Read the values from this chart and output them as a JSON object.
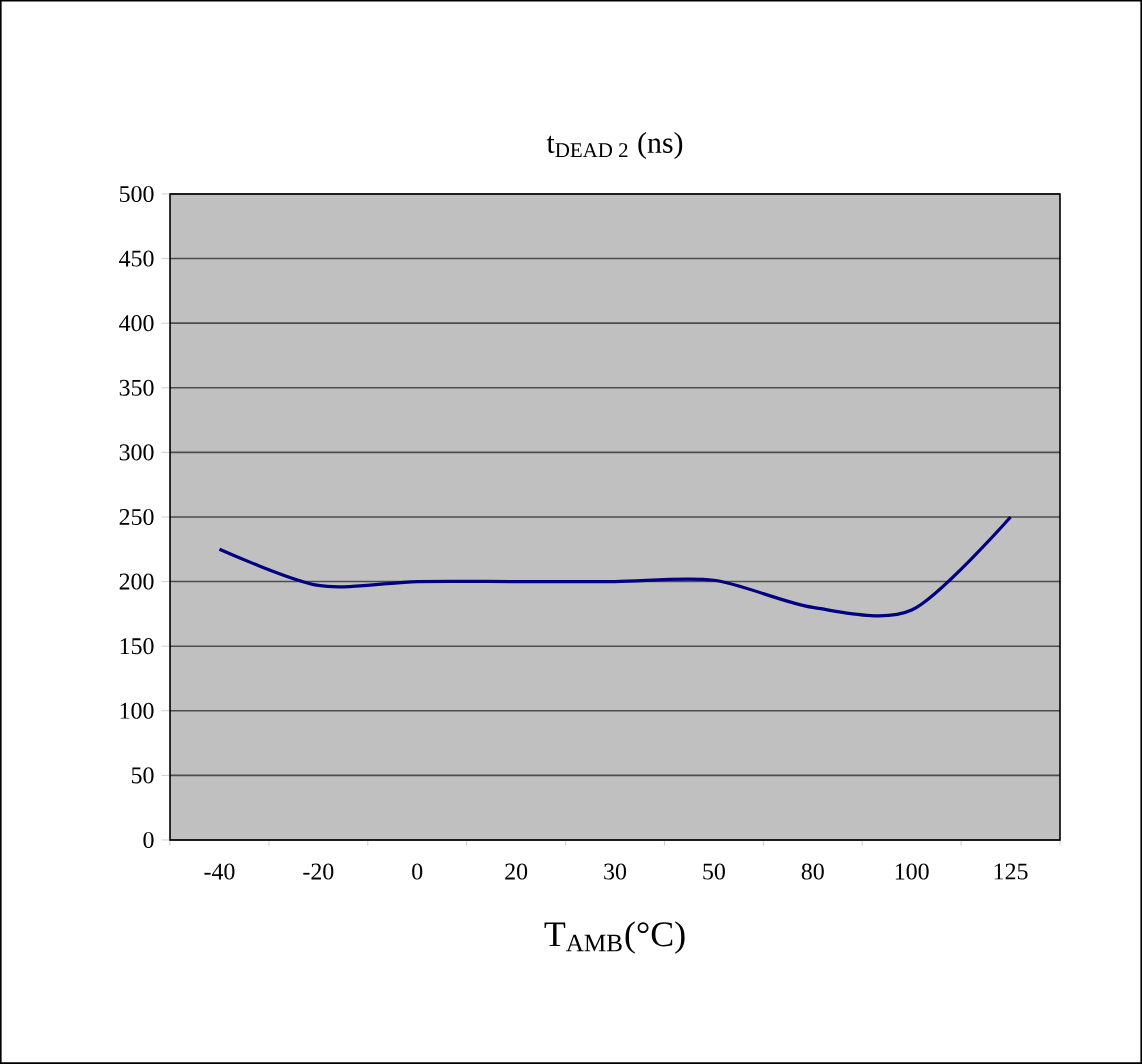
{
  "chart_data": {
    "type": "line",
    "title": "t$_{DEAD 2}$ (ns)",
    "xlabel": "T$_{AMB}$(°C)",
    "categories": [
      "-40",
      "-20",
      "0",
      "20",
      "30",
      "50",
      "80",
      "100",
      "125"
    ],
    "series": [
      {
        "color": "#000080",
        "values": [
          225,
          197,
          200,
          200,
          200,
          201,
          180,
          178,
          250
        ]
      }
    ],
    "ylim": [
      0,
      500
    ],
    "yticks": [
      0,
      50,
      100,
      150,
      200,
      250,
      300,
      350,
      400,
      450,
      500
    ],
    "grid": "y",
    "marker": "none",
    "line_style": "solid"
  }
}
